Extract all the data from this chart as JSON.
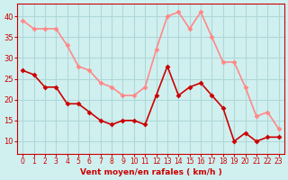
{
  "title": "",
  "xlabel": "Vent moyen/en rafales ( km/h )",
  "xlabel_color": "#cc0000",
  "background_color": "#d0f0f0",
  "grid_color": "#b0d8d8",
  "x_hours": [
    0,
    1,
    2,
    3,
    4,
    5,
    6,
    7,
    8,
    9,
    10,
    11,
    12,
    13,
    14,
    15,
    16,
    17,
    18,
    19,
    20,
    21,
    22,
    23
  ],
  "wind_avg": [
    27,
    26,
    23,
    23,
    19,
    19,
    17,
    15,
    14,
    15,
    15,
    14,
    21,
    28,
    21,
    23,
    24,
    21,
    18,
    10,
    12,
    10,
    11,
    11
  ],
  "wind_gust": [
    39,
    37,
    37,
    37,
    33,
    28,
    27,
    24,
    23,
    21,
    21,
    23,
    32,
    40,
    41,
    37,
    41,
    35,
    29,
    29,
    23,
    16,
    17,
    13
  ],
  "avg_color": "#cc0000",
  "gust_color": "#ff8888",
  "ylim_min": 7,
  "ylim_max": 43,
  "yticks": [
    10,
    15,
    20,
    25,
    30,
    35,
    40
  ],
  "marker_size": 3,
  "line_width": 1.2
}
